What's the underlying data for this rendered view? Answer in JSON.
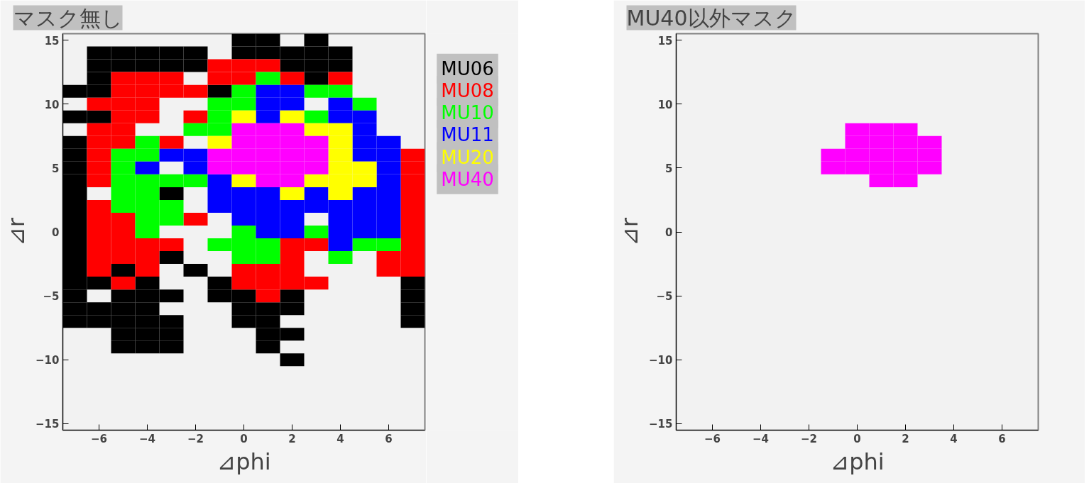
{
  "chart_data": [
    {
      "type": "scatter",
      "title": "マスク無し",
      "xlabel": "⊿phi",
      "ylabel": "⊿r",
      "marker": "square",
      "grid": false,
      "xlim": [
        -7.5,
        7.5
      ],
      "ylim": [
        -15.5,
        15.5
      ],
      "xticks": [
        -6,
        -4,
        -2,
        0,
        2,
        4,
        6
      ],
      "yticks": [
        -15,
        -10,
        -5,
        0,
        5,
        10,
        15
      ],
      "series": [
        {
          "name": "MU06",
          "color": "#000000",
          "x": [
            0,
            1,
            3,
            -6,
            -5,
            -4,
            -3,
            -2,
            0,
            1,
            2,
            3,
            4,
            -6,
            -5,
            -4,
            -3,
            -2,
            2,
            3,
            4,
            -6,
            3,
            -7,
            -6,
            -1,
            -7,
            -6,
            -7,
            -7,
            -7,
            -7,
            -7,
            -3,
            -7,
            -7,
            -7,
            -7,
            -7,
            -3,
            -7,
            -5,
            -2,
            -7,
            -6,
            -4,
            -1,
            7,
            -7,
            -5,
            -4,
            -3,
            -1,
            0,
            2,
            7,
            -7,
            -6,
            -5,
            -4,
            0,
            1,
            2,
            7,
            -7,
            -6,
            -5,
            -4,
            -3,
            0,
            1,
            7,
            -5,
            -4,
            -3,
            1,
            2,
            -5,
            -4,
            -3,
            1,
            2
          ],
          "values": [
            15,
            15,
            15,
            14,
            14,
            14,
            14,
            14,
            14,
            14,
            14,
            14,
            14,
            13,
            13,
            13,
            13,
            13,
            13,
            13,
            13,
            12,
            12,
            11,
            11,
            11,
            9,
            9,
            7,
            6,
            5,
            4,
            3,
            3,
            2,
            1,
            0,
            -1,
            -2,
            -2,
            -3,
            -3,
            -3,
            -4,
            -4,
            -4,
            -4,
            -4,
            -5,
            -5,
            -5,
            -5,
            -5,
            -5,
            -5,
            -5,
            -6,
            -6,
            -6,
            -6,
            -6,
            -6,
            -6,
            -6,
            -7,
            -7,
            -7,
            -7,
            -7,
            -7,
            -7,
            -7,
            -8,
            -8,
            -8,
            -8,
            -8,
            -9,
            -9,
            -9,
            -9,
            -10
          ]
        },
        {
          "name": "MU08",
          "color": "#ff0000",
          "x": [
            -1,
            0,
            1,
            -5,
            -4,
            -3,
            -1,
            0,
            2,
            4,
            -5,
            -4,
            -3,
            -2,
            -6,
            -5,
            -4,
            -5,
            -4,
            -2,
            -6,
            -5,
            -6,
            -5,
            -3,
            -6,
            7,
            -6,
            7,
            -6,
            7,
            7,
            -6,
            7,
            -6,
            -5,
            -2,
            7,
            -6,
            -5,
            7,
            -6,
            -5,
            -4,
            -3,
            2,
            3,
            7,
            -6,
            -5,
            -4,
            2,
            6,
            7,
            -6,
            -4,
            0,
            1,
            2,
            6,
            7,
            -5,
            0,
            1,
            2,
            3,
            1
          ],
          "values": [
            13,
            13,
            13,
            12,
            12,
            12,
            12,
            12,
            12,
            12,
            11,
            11,
            11,
            11,
            10,
            10,
            10,
            9,
            9,
            9,
            8,
            8,
            7,
            7,
            7,
            6,
            6,
            5,
            5,
            4,
            4,
            3,
            2,
            2,
            1,
            1,
            1,
            1,
            0,
            0,
            0,
            -1,
            -1,
            -1,
            -1,
            -1,
            -1,
            -1,
            -2,
            -2,
            -2,
            -2,
            -2,
            -2,
            -3,
            -3,
            -3,
            -3,
            -3,
            -3,
            -3,
            -4,
            -4,
            -4,
            -4,
            -4,
            -5
          ]
        },
        {
          "name": "MU10",
          "color": "#00ff00",
          "x": [
            1,
            0,
            3,
            4,
            -1,
            0,
            5,
            -1,
            3,
            -2,
            -1,
            -4,
            -5,
            -4,
            -5,
            -5,
            -4,
            -3,
            -2,
            -5,
            -4,
            -5,
            -4,
            -3,
            -4,
            -3,
            -4,
            0,
            3,
            -1,
            0,
            1,
            5,
            6,
            0,
            1,
            4
          ],
          "values": [
            12,
            11,
            11,
            11,
            10,
            10,
            10,
            9,
            9,
            8,
            8,
            7,
            6,
            6,
            5,
            4,
            4,
            4,
            4,
            3,
            3,
            2,
            2,
            2,
            1,
            1,
            0,
            0,
            0,
            -1,
            -1,
            -1,
            -1,
            -1,
            -2,
            -2,
            -2
          ]
        },
        {
          "name": "MU11",
          "color": "#0000ff",
          "x": [
            1,
            2,
            1,
            2,
            4,
            1,
            4,
            5,
            5,
            5,
            6,
            -3,
            -2,
            5,
            6,
            -4,
            -2,
            6,
            -1,
            6,
            -1,
            0,
            1,
            3,
            5,
            6,
            -1,
            0,
            1,
            2,
            3,
            4,
            5,
            6,
            0,
            1,
            2,
            4,
            5,
            6,
            1,
            2,
            4,
            5,
            6,
            4
          ],
          "values": [
            11,
            11,
            10,
            10,
            10,
            9,
            9,
            9,
            8,
            7,
            7,
            6,
            6,
            6,
            6,
            5,
            5,
            5,
            4,
            4,
            3,
            3,
            3,
            3,
            3,
            3,
            2,
            2,
            2,
            2,
            2,
            2,
            2,
            2,
            1,
            1,
            1,
            1,
            1,
            1,
            0,
            0,
            0,
            0,
            0,
            -1
          ]
        },
        {
          "name": "MU20",
          "color": "#ffff00",
          "x": [
            0,
            2,
            3,
            4,
            -1,
            4,
            4,
            4,
            5,
            0,
            3,
            4,
            5,
            2,
            4
          ],
          "values": [
            9,
            9,
            8,
            8,
            7,
            7,
            6,
            5,
            5,
            4,
            4,
            4,
            4,
            3,
            3
          ]
        },
        {
          "name": "MU40",
          "color": "#ff00ff",
          "x": [
            0,
            1,
            2,
            0,
            1,
            2,
            3,
            -1,
            0,
            1,
            2,
            3,
            -1,
            0,
            1,
            2,
            3,
            1,
            2
          ],
          "values": [
            8,
            8,
            8,
            7,
            7,
            7,
            7,
            6,
            6,
            6,
            6,
            6,
            5,
            5,
            5,
            5,
            5,
            4,
            4
          ]
        }
      ]
    },
    {
      "type": "scatter",
      "title": "MU40以外マスク",
      "xlabel": "⊿phi",
      "ylabel": "⊿r",
      "marker": "square",
      "grid": false,
      "xlim": [
        -7.5,
        7.5
      ],
      "ylim": [
        -15.5,
        15.5
      ],
      "xticks": [
        -6,
        -4,
        -2,
        0,
        2,
        4,
        6
      ],
      "yticks": [
        -15,
        -10,
        -5,
        0,
        5,
        10,
        15
      ],
      "series": [
        {
          "color": "#ff00ff",
          "x": [
            0,
            1,
            2,
            0,
            1,
            2,
            3,
            -1,
            0,
            1,
            2,
            3,
            -1,
            0,
            1,
            2,
            3,
            1,
            2
          ],
          "values": [
            8,
            8,
            8,
            7,
            7,
            7,
            7,
            6,
            6,
            6,
            6,
            6,
            5,
            5,
            5,
            5,
            5,
            4,
            4
          ]
        }
      ]
    }
  ]
}
